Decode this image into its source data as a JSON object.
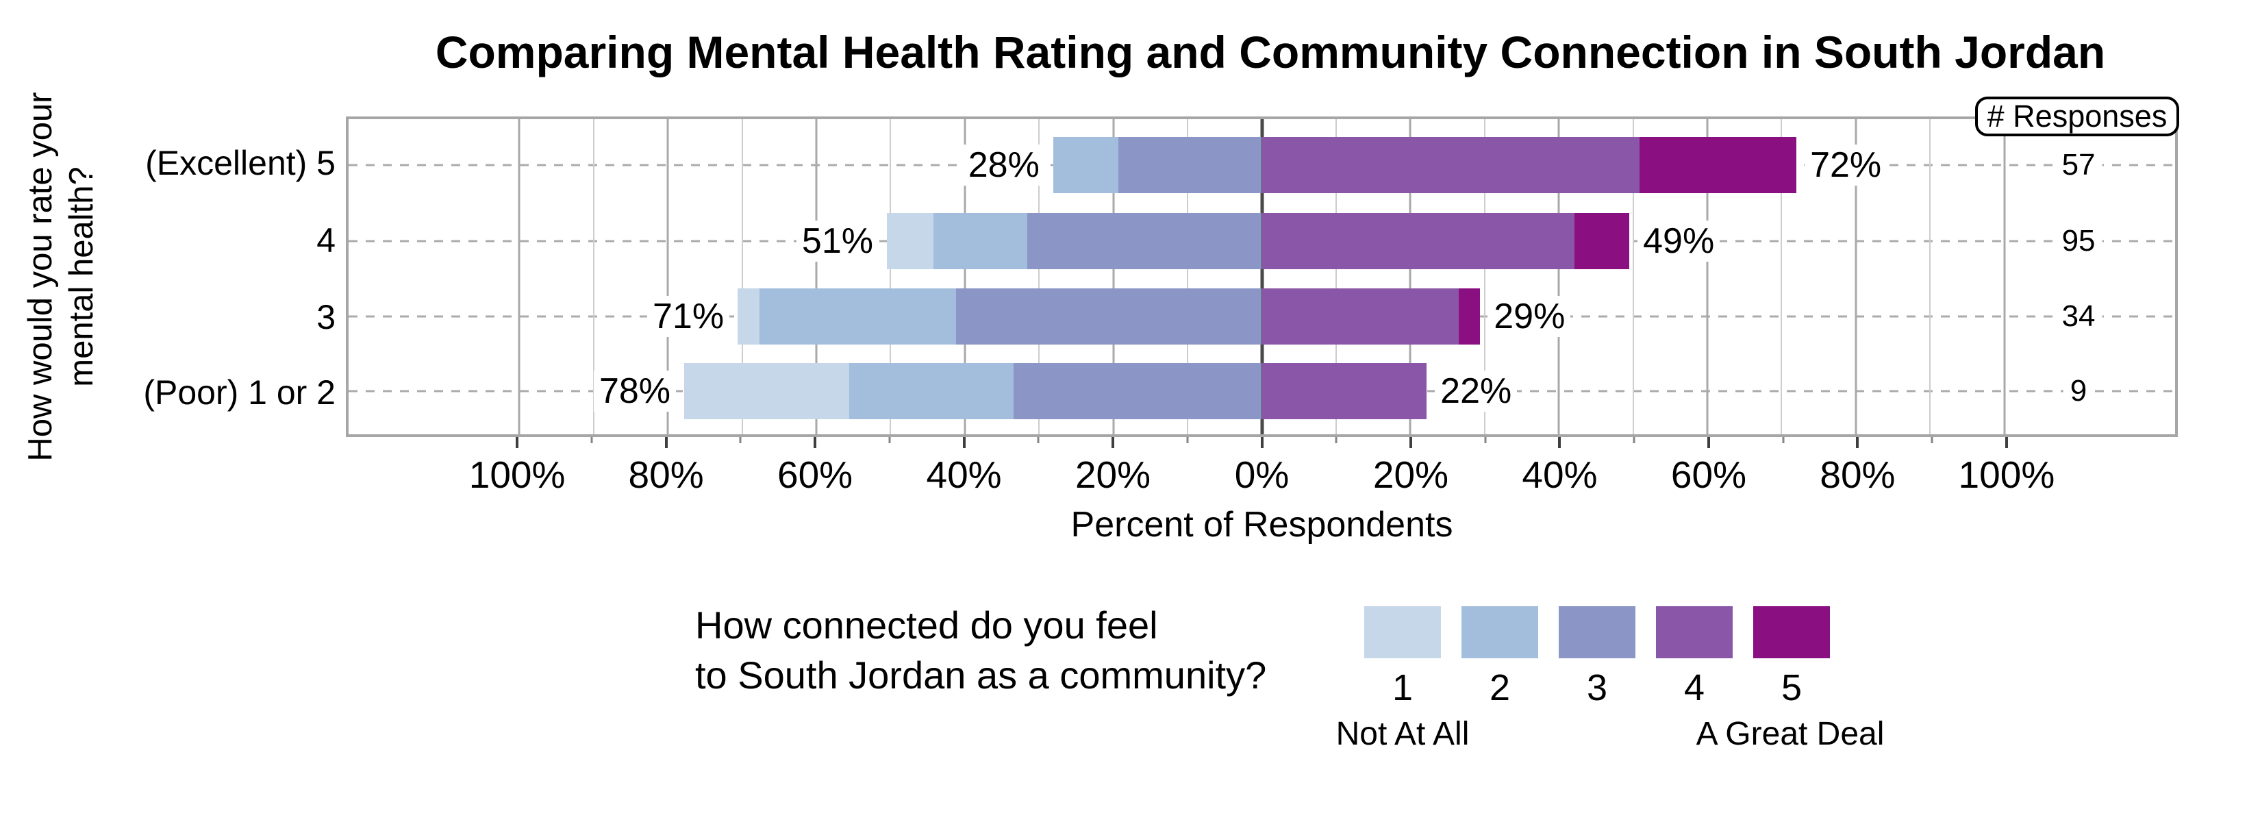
{
  "chart_data": {
    "type": "diverging_stacked_bar",
    "title": "Comparing Mental Health Rating and Community Connection in South Jordan",
    "responses_header": "# Responses",
    "x_axis": {
      "label": "Percent of Respondents",
      "range_percent": [
        -123,
        123
      ],
      "grid_range_percent": [
        -100,
        100
      ],
      "major_tick_values": [
        -100,
        -80,
        -60,
        -40,
        -20,
        0,
        20,
        40,
        60,
        80,
        100
      ],
      "major_tick_labels": [
        "100%",
        "80%",
        "60%",
        "40%",
        "20%",
        "0%",
        "20%",
        "40%",
        "60%",
        "80%",
        "100%"
      ],
      "minor_tick_values": [
        -90,
        -70,
        -50,
        -30,
        -10,
        10,
        30,
        50,
        70,
        90
      ],
      "grid_on": true
    },
    "y_axis": {
      "label_line1": "How would you rate your",
      "label_line2": "mental health?",
      "categories": [
        "(Excellent) 5",
        "4",
        "3",
        "(Poor) 1 or 2"
      ]
    },
    "legend": {
      "title_line1": "How connected do you feel",
      "title_line2": "to South Jordan as a community?",
      "levels": [
        "1",
        "2",
        "3",
        "4",
        "5"
      ],
      "colors": [
        "#c6d7ea",
        "#a3bedd",
        "#8b95c6",
        "#8a56a7",
        "#8a1081"
      ],
      "left_caption": "Not At All",
      "right_caption": "A Great Deal",
      "position": "bottom"
    },
    "negative_levels_count": 3,
    "responses_column_position_percent": 110,
    "rows": [
      {
        "category": "(Excellent) 5",
        "segments_percent": [
          0,
          8.8,
          19.3,
          50.9,
          21.1
        ],
        "left_total_label": "28%",
        "right_total_label": "72%",
        "n_responses": "57"
      },
      {
        "category": "4",
        "segments_percent": [
          6.3,
          12.6,
          31.6,
          42.1,
          7.4
        ],
        "left_total_label": "51%",
        "right_total_label": "49%",
        "n_responses": "95"
      },
      {
        "category": "3",
        "segments_percent": [
          2.9,
          26.5,
          41.2,
          26.5,
          2.9
        ],
        "left_total_label": "71%",
        "right_total_label": "29%",
        "n_responses": "34"
      },
      {
        "category": "(Poor) 1 or 2",
        "segments_percent": [
          22.2,
          22.2,
          33.4,
          22.2,
          0
        ],
        "left_total_label": "78%",
        "right_total_label": "22%",
        "n_responses": "9"
      }
    ]
  }
}
